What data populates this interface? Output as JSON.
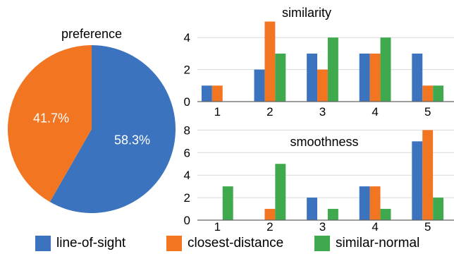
{
  "colors": {
    "line-of-sight": "#3C73BE",
    "closest-distance": "#F27622",
    "similar-normal": "#3FA94D"
  },
  "legend": [
    {
      "key": "line-of-sight",
      "label": "line-of-sight"
    },
    {
      "key": "closest-distance",
      "label": "closest-distance"
    },
    {
      "key": "similar-normal",
      "label": "similar-normal"
    }
  ],
  "chart_data": [
    {
      "type": "pie",
      "title": "preference",
      "slices": [
        {
          "name": "line-of-sight",
          "value": 58.3,
          "label": "58.3%"
        },
        {
          "name": "closest-distance",
          "value": 41.7,
          "label": "41.7%"
        }
      ]
    },
    {
      "type": "bar",
      "title": "similarity",
      "categories": [
        "1",
        "2",
        "3",
        "4",
        "5"
      ],
      "yticks": [
        0,
        2,
        4
      ],
      "ylim": [
        0,
        5.2
      ],
      "grid": true,
      "series": [
        {
          "name": "line-of-sight",
          "values": [
            1,
            2,
            3,
            3,
            3
          ]
        },
        {
          "name": "closest-distance",
          "values": [
            1,
            5,
            2,
            3,
            1
          ]
        },
        {
          "name": "similar-normal",
          "values": [
            0,
            3,
            4,
            4,
            1
          ]
        }
      ]
    },
    {
      "type": "bar",
      "title": "smoothness",
      "categories": [
        "1",
        "2",
        "3",
        "4",
        "5"
      ],
      "yticks": [
        0,
        2,
        4,
        6,
        8
      ],
      "ylim": [
        0,
        8.4
      ],
      "grid": true,
      "series": [
        {
          "name": "line-of-sight",
          "values": [
            0,
            0,
            2,
            3,
            7
          ]
        },
        {
          "name": "closest-distance",
          "values": [
            0,
            1,
            0,
            3,
            8
          ]
        },
        {
          "name": "similar-normal",
          "values": [
            3,
            5,
            1,
            1,
            2
          ]
        }
      ]
    }
  ]
}
